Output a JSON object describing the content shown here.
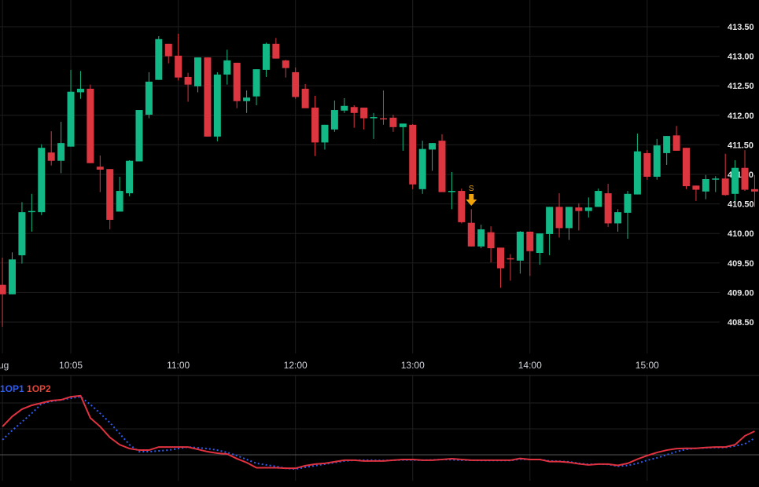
{
  "chart_data": [
    {
      "type": "candlestick",
      "interval": "5m",
      "y_axis": {
        "ticks": [
          "408.50",
          "409.00",
          "409.50",
          "410.00",
          "410.50",
          "411.00",
          "411.50",
          "412.00",
          "412.50",
          "413.00",
          "413.50"
        ],
        "range": [
          408.2,
          413.7
        ],
        "position": "right"
      },
      "x_axis": {
        "ticks": [
          {
            "time": "09:30",
            "label": "ug"
          },
          {
            "time": "10:05",
            "label": "10:05"
          },
          {
            "time": "11:00",
            "label": "11:00"
          },
          {
            "time": "12:00",
            "label": "12:00"
          },
          {
            "time": "13:00",
            "label": "13:00"
          },
          {
            "time": "14:00",
            "label": "14:00"
          },
          {
            "time": "15:00",
            "label": "15:00"
          }
        ]
      },
      "grid": true,
      "colors": {
        "up": "#12b886",
        "down": "#dc3640",
        "background": "#000000",
        "grid": "#1f1f1f",
        "signal": "#f0a30a"
      },
      "signals": [
        {
          "time": "13:30",
          "label": "S",
          "direction": "sell"
        }
      ],
      "candles_columns": [
        "time",
        "open",
        "high",
        "low",
        "close"
      ],
      "candles": [
        [
          "09:30",
          409.13,
          409.59,
          408.42,
          408.97
        ],
        [
          "09:35",
          408.97,
          409.68,
          408.97,
          409.56
        ],
        [
          "09:40",
          409.63,
          410.53,
          409.49,
          410.36
        ],
        [
          "09:45",
          410.36,
          410.67,
          410.03,
          410.38
        ],
        [
          "09:50",
          410.36,
          411.51,
          410.31,
          411.45
        ],
        [
          "09:55",
          411.37,
          411.73,
          411.15,
          411.23
        ],
        [
          "10:00",
          411.23,
          411.89,
          411.02,
          411.53
        ],
        [
          "10:05",
          411.47,
          412.77,
          411.47,
          412.4
        ],
        [
          "10:10",
          412.39,
          412.75,
          412.28,
          412.45
        ],
        [
          "10:15",
          412.45,
          412.52,
          411.19,
          411.19
        ],
        [
          "10:20",
          411.13,
          411.32,
          410.7,
          411.08
        ],
        [
          "10:25",
          411.09,
          411.09,
          410.07,
          410.23
        ],
        [
          "10:30",
          410.37,
          410.96,
          410.37,
          410.72
        ],
        [
          "10:35",
          410.68,
          411.24,
          410.63,
          411.23
        ],
        [
          "10:40",
          411.22,
          412.09,
          411.22,
          412.09
        ],
        [
          "10:45",
          412.01,
          412.73,
          411.95,
          412.57
        ],
        [
          "10:50",
          412.6,
          413.34,
          412.6,
          413.29
        ],
        [
          "10:55",
          413.21,
          413.21,
          412.88,
          413.0
        ],
        [
          "11:00",
          413.01,
          413.38,
          412.59,
          412.64
        ],
        [
          "11:05",
          412.65,
          412.72,
          412.23,
          412.52
        ],
        [
          "11:10",
          412.49,
          412.98,
          412.39,
          412.98
        ],
        [
          "11:15",
          412.98,
          412.98,
          411.64,
          411.64
        ],
        [
          "11:20",
          411.64,
          412.73,
          411.56,
          412.69
        ],
        [
          "11:25",
          412.69,
          413.11,
          412.52,
          412.93
        ],
        [
          "11:30",
          412.89,
          412.89,
          412.12,
          412.24
        ],
        [
          "11:35",
          412.24,
          412.42,
          412.04,
          412.3
        ],
        [
          "11:40",
          412.32,
          412.78,
          412.17,
          412.78
        ],
        [
          "11:45",
          412.77,
          413.23,
          412.65,
          413.21
        ],
        [
          "11:50",
          413.21,
          413.31,
          412.96,
          412.96
        ],
        [
          "11:55",
          412.93,
          412.94,
          412.64,
          412.8
        ],
        [
          "12:00",
          412.73,
          412.81,
          412.28,
          412.31
        ],
        [
          "12:05",
          412.45,
          412.53,
          412.12,
          412.12
        ],
        [
          "12:10",
          412.13,
          412.33,
          411.31,
          411.54
        ],
        [
          "12:15",
          411.54,
          411.84,
          411.42,
          411.84
        ],
        [
          "12:20",
          411.76,
          412.25,
          411.72,
          412.09
        ],
        [
          "12:25",
          412.08,
          412.29,
          412.04,
          412.16
        ],
        [
          "12:30",
          412.14,
          412.17,
          411.79,
          412.04
        ],
        [
          "12:35",
          412.13,
          412.13,
          411.76,
          411.95
        ],
        [
          "12:40",
          411.95,
          412.04,
          411.6,
          411.97
        ],
        [
          "12:45",
          411.95,
          412.42,
          411.84,
          411.93
        ],
        [
          "12:50",
          411.96,
          412.01,
          411.72,
          411.8
        ],
        [
          "12:55",
          411.8,
          411.86,
          411.4,
          411.86
        ],
        [
          "13:00",
          411.84,
          411.85,
          410.75,
          410.83
        ],
        [
          "13:05",
          410.75,
          411.57,
          410.67,
          411.43
        ],
        [
          "13:10",
          411.42,
          411.53,
          411.06,
          411.53
        ],
        [
          "13:15",
          411.57,
          411.68,
          410.7,
          410.7
        ],
        [
          "13:20",
          410.7,
          411.04,
          410.41,
          410.72
        ],
        [
          "13:25",
          410.72,
          410.76,
          410.17,
          410.19
        ],
        [
          "13:30",
          410.18,
          410.41,
          409.78,
          409.78
        ],
        [
          "13:35",
          409.78,
          410.15,
          409.75,
          410.07
        ],
        [
          "13:40",
          410.02,
          410.12,
          409.51,
          409.75
        ],
        [
          "13:45",
          409.76,
          409.76,
          409.08,
          409.41
        ],
        [
          "13:50",
          409.58,
          409.65,
          409.2,
          409.56
        ],
        [
          "13:55",
          409.54,
          410.04,
          409.32,
          410.03
        ],
        [
          "14:00",
          410.03,
          410.03,
          409.28,
          409.7
        ],
        [
          "14:05",
          409.67,
          410.0,
          409.47,
          410.0
        ],
        [
          "14:10",
          409.99,
          410.45,
          409.63,
          410.45
        ],
        [
          "14:15",
          410.45,
          410.68,
          409.93,
          410.09
        ],
        [
          "14:20",
          410.09,
          410.45,
          409.89,
          410.45
        ],
        [
          "14:25",
          410.44,
          410.51,
          410.05,
          410.38
        ],
        [
          "14:30",
          410.38,
          410.61,
          410.27,
          410.44
        ],
        [
          "14:35",
          410.45,
          410.76,
          410.45,
          410.72
        ],
        [
          "14:40",
          410.68,
          410.84,
          410.11,
          410.17
        ],
        [
          "14:45",
          410.17,
          410.41,
          410.03,
          410.36
        ],
        [
          "14:50",
          410.35,
          410.72,
          409.91,
          410.67
        ],
        [
          "14:55",
          410.66,
          411.69,
          410.66,
          411.39
        ],
        [
          "15:00",
          411.36,
          411.41,
          410.91,
          410.96
        ],
        [
          "15:05",
          410.96,
          411.6,
          410.91,
          411.49
        ],
        [
          "15:10",
          411.36,
          411.65,
          411.16,
          411.65
        ],
        [
          "15:15",
          411.66,
          411.82,
          411.4,
          411.4
        ],
        [
          "15:20",
          411.45,
          411.45,
          410.75,
          410.8
        ],
        [
          "15:25",
          410.81,
          410.81,
          410.55,
          410.74
        ],
        [
          "15:30",
          410.71,
          410.99,
          410.58,
          410.92
        ],
        [
          "15:35",
          410.91,
          410.97,
          410.7,
          410.93
        ],
        [
          "15:40",
          410.93,
          411.35,
          410.64,
          410.65
        ],
        [
          "15:45",
          410.67,
          411.24,
          410.55,
          411.11
        ],
        [
          "15:50",
          411.11,
          411.41,
          410.72,
          410.74
        ],
        [
          "15:55",
          410.75,
          410.99,
          410.45,
          410.71
        ]
      ]
    },
    {
      "type": "line",
      "legend": "top-left",
      "grid": true,
      "y_range": [
        -1,
        3
      ],
      "series": [
        {
          "name": "1OP1",
          "color": "#2f5cf0",
          "style": "dotted",
          "values": [
            0.58,
            0.94,
            1.27,
            1.6,
            1.97,
            2.06,
            2.12,
            2.18,
            2.24,
            1.94,
            1.6,
            1.24,
            0.82,
            0.39,
            0.12,
            0.12,
            0.15,
            0.18,
            0.24,
            0.3,
            0.27,
            0.24,
            0.18,
            0.09,
            -0.03,
            -0.18,
            -0.33,
            -0.39,
            -0.45,
            -0.52,
            -0.55,
            -0.48,
            -0.42,
            -0.36,
            -0.3,
            -0.24,
            -0.21,
            -0.21,
            -0.21,
            -0.22,
            -0.21,
            -0.2,
            -0.2,
            -0.21,
            -0.2,
            -0.18,
            -0.19,
            -0.21,
            -0.21,
            -0.22,
            -0.22,
            -0.22,
            -0.22,
            -0.17,
            -0.18,
            -0.18,
            -0.24,
            -0.25,
            -0.27,
            -0.33,
            -0.37,
            -0.36,
            -0.37,
            -0.44,
            -0.41,
            -0.33,
            -0.21,
            -0.12,
            0,
            0.12,
            0.21,
            0.25,
            0.27,
            0.28,
            0.28,
            0.34,
            0.42,
            0.64
          ]
        },
        {
          "name": "1OP2",
          "color": "#e0323f",
          "style": "solid",
          "values": [
            1.09,
            1.48,
            1.76,
            1.91,
            2.0,
            2.09,
            2.12,
            2.24,
            2.28,
            1.42,
            1.09,
            0.67,
            0.39,
            0.24,
            0.18,
            0.18,
            0.3,
            0.3,
            0.3,
            0.3,
            0.21,
            0.12,
            0.06,
            0.03,
            -0.15,
            -0.3,
            -0.5,
            -0.5,
            -0.5,
            -0.52,
            -0.52,
            -0.42,
            -0.36,
            -0.33,
            -0.27,
            -0.21,
            -0.21,
            -0.24,
            -0.24,
            -0.24,
            -0.21,
            -0.18,
            -0.18,
            -0.21,
            -0.21,
            -0.18,
            -0.15,
            -0.18,
            -0.21,
            -0.21,
            -0.21,
            -0.21,
            -0.21,
            -0.14,
            -0.18,
            -0.18,
            -0.26,
            -0.26,
            -0.29,
            -0.35,
            -0.39,
            -0.36,
            -0.36,
            -0.41,
            -0.33,
            -0.17,
            -0.03,
            0.09,
            0.18,
            0.24,
            0.25,
            0.25,
            0.28,
            0.3,
            0.3,
            0.39,
            0.73,
            0.91
          ]
        }
      ]
    }
  ]
}
